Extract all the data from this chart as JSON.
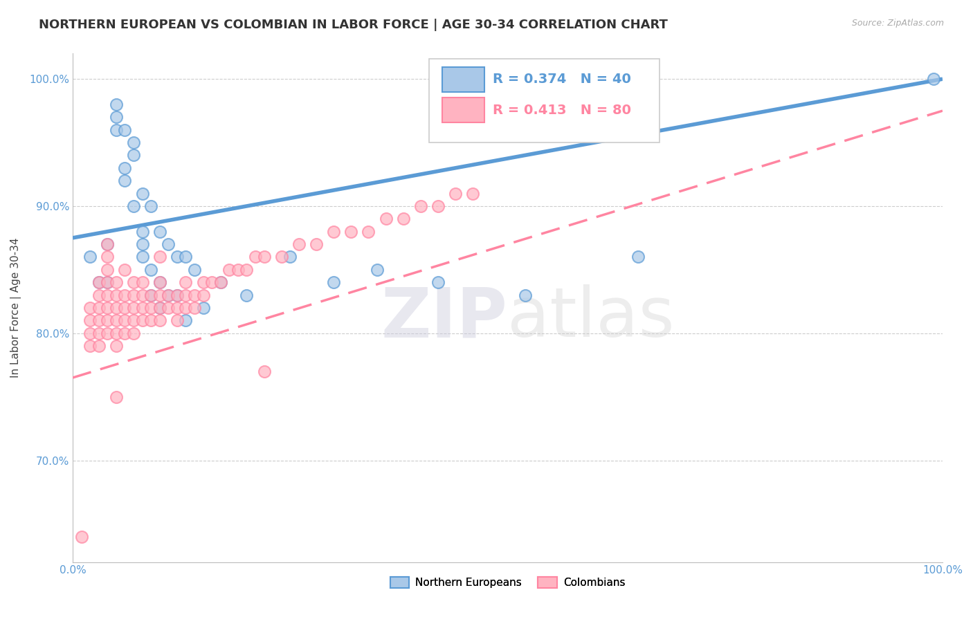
{
  "title": "NORTHERN EUROPEAN VS COLOMBIAN IN LABOR FORCE | AGE 30-34 CORRELATION CHART",
  "source": "Source: ZipAtlas.com",
  "ylabel": "In Labor Force | Age 30-34",
  "legend_r_n": [
    {
      "R": 0.374,
      "N": 40
    },
    {
      "R": 0.413,
      "N": 80
    }
  ],
  "xlim": [
    0.0,
    1.0
  ],
  "ylim": [
    0.62,
    1.02
  ],
  "y_ticks": [
    0.7,
    0.8,
    0.9,
    1.0
  ],
  "y_tick_labels": [
    "70.0%",
    "80.0%",
    "90.0%",
    "100.0%"
  ],
  "blue_color": "#5B9BD5",
  "pink_color": "#FF85A1",
  "blue_face": "#A9C8E8",
  "pink_face": "#FFB3C1",
  "title_fontsize": 13,
  "axis_label_fontsize": 11,
  "tick_fontsize": 11,
  "watermark_zip": "ZIP",
  "watermark_atlas": "atlas",
  "northern_europeans_x": [
    0.02,
    0.03,
    0.04,
    0.04,
    0.05,
    0.05,
    0.05,
    0.06,
    0.06,
    0.06,
    0.07,
    0.07,
    0.07,
    0.08,
    0.08,
    0.08,
    0.08,
    0.09,
    0.09,
    0.09,
    0.1,
    0.1,
    0.1,
    0.11,
    0.11,
    0.12,
    0.12,
    0.13,
    0.13,
    0.14,
    0.15,
    0.17,
    0.2,
    0.25,
    0.3,
    0.35,
    0.42,
    0.52,
    0.65,
    0.99
  ],
  "northern_europeans_y": [
    0.86,
    0.84,
    0.84,
    0.87,
    0.96,
    0.97,
    0.98,
    0.93,
    0.92,
    0.96,
    0.9,
    0.94,
    0.95,
    0.86,
    0.87,
    0.88,
    0.91,
    0.83,
    0.85,
    0.9,
    0.82,
    0.84,
    0.88,
    0.83,
    0.87,
    0.83,
    0.86,
    0.81,
    0.86,
    0.85,
    0.82,
    0.84,
    0.83,
    0.86,
    0.84,
    0.85,
    0.84,
    0.83,
    0.86,
    1.0
  ],
  "colombians_x": [
    0.01,
    0.02,
    0.02,
    0.02,
    0.02,
    0.03,
    0.03,
    0.03,
    0.03,
    0.03,
    0.03,
    0.04,
    0.04,
    0.04,
    0.04,
    0.04,
    0.04,
    0.04,
    0.04,
    0.05,
    0.05,
    0.05,
    0.05,
    0.05,
    0.05,
    0.06,
    0.06,
    0.06,
    0.06,
    0.06,
    0.07,
    0.07,
    0.07,
    0.07,
    0.07,
    0.08,
    0.08,
    0.08,
    0.08,
    0.09,
    0.09,
    0.09,
    0.1,
    0.1,
    0.1,
    0.1,
    0.11,
    0.11,
    0.12,
    0.12,
    0.12,
    0.13,
    0.13,
    0.13,
    0.14,
    0.14,
    0.15,
    0.15,
    0.16,
    0.17,
    0.18,
    0.19,
    0.2,
    0.21,
    0.22,
    0.24,
    0.26,
    0.28,
    0.3,
    0.32,
    0.34,
    0.36,
    0.38,
    0.4,
    0.42,
    0.44,
    0.46,
    0.1,
    0.22,
    0.05
  ],
  "colombians_y": [
    0.64,
    0.79,
    0.8,
    0.81,
    0.82,
    0.79,
    0.8,
    0.81,
    0.82,
    0.83,
    0.84,
    0.8,
    0.81,
    0.82,
    0.83,
    0.84,
    0.85,
    0.86,
    0.87,
    0.79,
    0.8,
    0.81,
    0.82,
    0.83,
    0.84,
    0.8,
    0.81,
    0.82,
    0.83,
    0.85,
    0.8,
    0.81,
    0.82,
    0.83,
    0.84,
    0.81,
    0.82,
    0.83,
    0.84,
    0.81,
    0.82,
    0.83,
    0.81,
    0.82,
    0.83,
    0.84,
    0.82,
    0.83,
    0.81,
    0.82,
    0.83,
    0.82,
    0.83,
    0.84,
    0.82,
    0.83,
    0.83,
    0.84,
    0.84,
    0.84,
    0.85,
    0.85,
    0.85,
    0.86,
    0.86,
    0.86,
    0.87,
    0.87,
    0.88,
    0.88,
    0.88,
    0.89,
    0.89,
    0.9,
    0.9,
    0.91,
    0.91,
    0.86,
    0.77,
    0.75
  ]
}
